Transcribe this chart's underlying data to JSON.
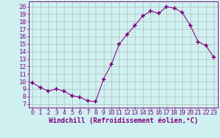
{
  "x": [
    0,
    1,
    2,
    3,
    4,
    5,
    6,
    7,
    8,
    9,
    10,
    11,
    12,
    13,
    14,
    15,
    16,
    17,
    18,
    19,
    20,
    21,
    22,
    23
  ],
  "y": [
    9.8,
    9.2,
    8.7,
    9.0,
    8.7,
    8.1,
    7.9,
    7.4,
    7.3,
    10.3,
    12.3,
    15.0,
    16.3,
    17.5,
    18.8,
    19.4,
    19.1,
    20.0,
    19.8,
    19.2,
    17.5,
    15.3,
    14.8,
    13.2
  ],
  "line_color": "#800080",
  "marker": "+",
  "marker_size": 4,
  "marker_lw": 1.2,
  "bg_color": "#cff0f0",
  "grid_color": "#aaaaaa",
  "xlabel": "Windchill (Refroidissement éolien,°C)",
  "ylabel_ticks": [
    7,
    8,
    9,
    10,
    11,
    12,
    13,
    14,
    15,
    16,
    17,
    18,
    19,
    20
  ],
  "ylim": [
    6.5,
    20.7
  ],
  "xlim": [
    -0.5,
    23.5
  ],
  "xlabel_fontsize": 7,
  "tick_fontsize": 6.5,
  "tick_color": "#800080",
  "line_width": 0.8
}
